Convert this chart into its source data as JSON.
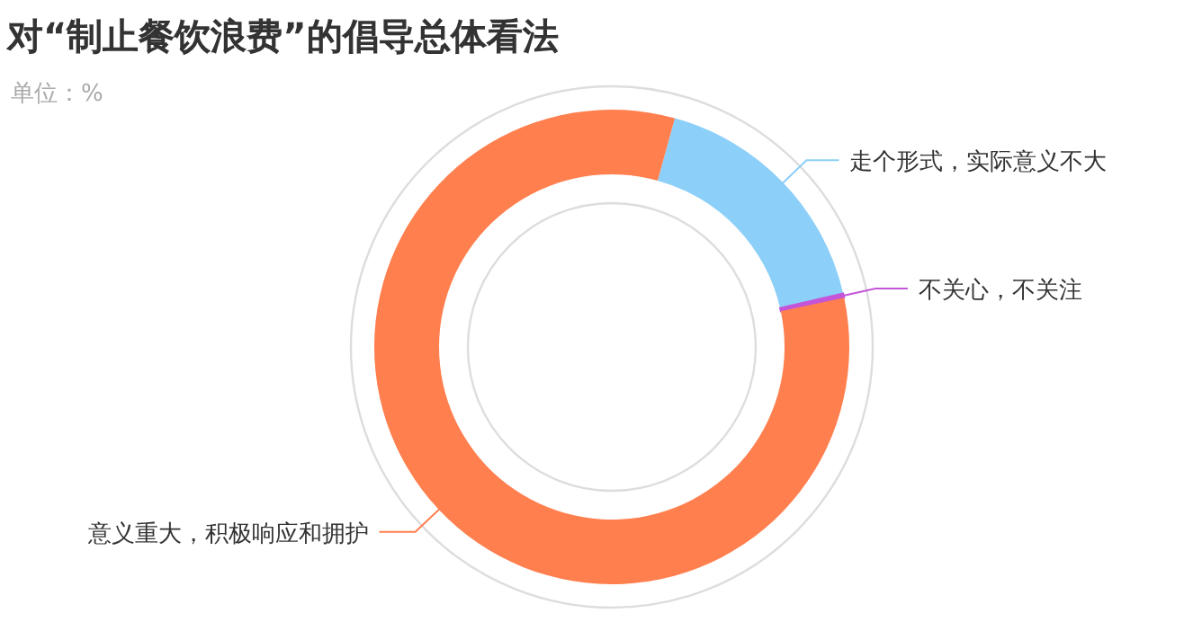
{
  "chart_data": {
    "type": "donut",
    "title": "对“制止餐饮浪费”的倡导总体看法",
    "subtitle": "单位：%",
    "categories": [
      "走个形式，实际意义不大",
      "不关心，不关注",
      "意义重大，积极响应和拥护"
    ],
    "values": [
      17.1,
      0.3,
      82.6
    ],
    "colors": [
      "#8ccff8",
      "#c455d8",
      "#ff7f4e"
    ]
  }
}
